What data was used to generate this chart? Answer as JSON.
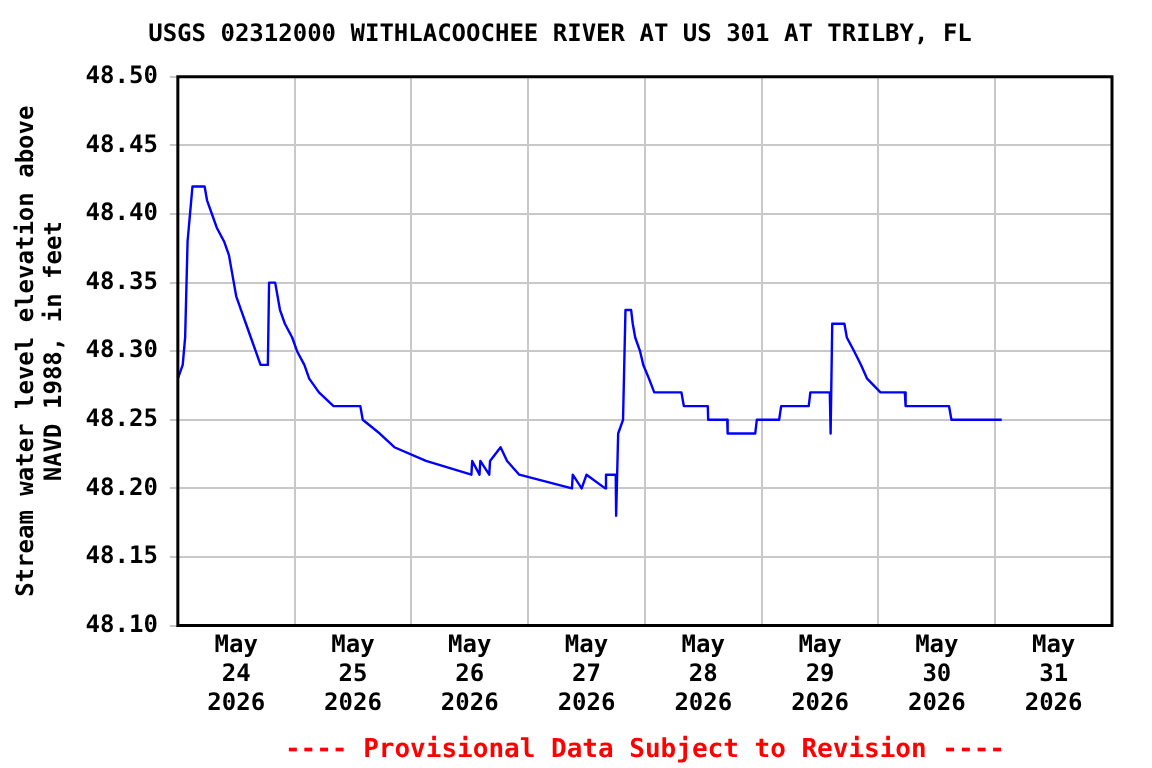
{
  "chart_data": {
    "type": "line",
    "title": "USGS 02312000 WITHLACOOCHEE RIVER AT US 301 AT TRILBY, FL",
    "ylabel": "Stream water level elevation above NAVD 1988, in feet",
    "annotations": [
      "---- Provisional Data Subject to Revision ----"
    ],
    "xlim": [
      "2026-05-24T00:00",
      "2026-06-01T00:00"
    ],
    "xticks": [
      {
        "value": "2026-05-24T12:00",
        "label": "May\n24\n2026"
      },
      {
        "value": "2026-05-25T00:00",
        "label": null
      },
      {
        "value": "2026-05-25T12:00",
        "label": "May\n25\n2026"
      },
      {
        "value": "2026-05-26T00:00",
        "label": null
      },
      {
        "value": "2026-05-26T12:00",
        "label": "May\n26\n2026"
      },
      {
        "value": "2026-05-27T00:00",
        "label": null
      },
      {
        "value": "2026-05-27T12:00",
        "label": "May\n27\n2026"
      },
      {
        "value": "2026-05-28T00:00",
        "label": null
      },
      {
        "value": "2026-05-28T12:00",
        "label": "May\n28\n2026"
      },
      {
        "value": "2026-05-29T00:00",
        "label": null
      },
      {
        "value": "2026-05-29T12:00",
        "label": "May\n29\n2026"
      },
      {
        "value": "2026-05-30T00:00",
        "label": null
      },
      {
        "value": "2026-05-30T12:00",
        "label": "May\n30\n2026"
      },
      {
        "value": "2026-05-31T00:00",
        "label": null
      },
      {
        "value": "2026-05-31T12:00",
        "label": "May\n31\n2026"
      }
    ],
    "ylim": [
      48.1,
      48.5
    ],
    "yticks": [
      {
        "value": 48.1,
        "label": "48.10"
      },
      {
        "value": 48.15,
        "label": "48.15"
      },
      {
        "value": 48.2,
        "label": "48.20"
      },
      {
        "value": 48.25,
        "label": "48.25"
      },
      {
        "value": 48.3,
        "label": "48.30"
      },
      {
        "value": 48.35,
        "label": "48.35"
      },
      {
        "value": 48.4,
        "label": "48.40"
      },
      {
        "value": 48.45,
        "label": "48.45"
      },
      {
        "value": 48.5,
        "label": "48.50"
      }
    ],
    "grid": true,
    "legend": false,
    "marker": "none",
    "line_style": "solid",
    "x": [
      "2026-05-24T00:00",
      "2026-05-24T01:00",
      "2026-05-24T01:30",
      "2026-05-24T02:00",
      "2026-05-24T03:00",
      "2026-05-24T05:30",
      "2026-05-24T06:00",
      "2026-05-24T07:00",
      "2026-05-24T08:00",
      "2026-05-24T09:30",
      "2026-05-24T10:30",
      "2026-05-24T11:00",
      "2026-05-24T12:00",
      "2026-05-24T13:00",
      "2026-05-24T14:00",
      "2026-05-24T15:00",
      "2026-05-24T16:00",
      "2026-05-24T17:00",
      "2026-05-24T18:30",
      "2026-05-24T18:45",
      "2026-05-24T20:00",
      "2026-05-24T21:00",
      "2026-05-24T22:00",
      "2026-05-24T23:30",
      "2026-05-25T00:30",
      "2026-05-25T02:00",
      "2026-05-25T03:00",
      "2026-05-25T05:00",
      "2026-05-25T08:00",
      "2026-05-25T13:30",
      "2026-05-25T14:00",
      "2026-05-25T17:30",
      "2026-05-25T20:30",
      "2026-05-26T03:00",
      "2026-05-26T12:20",
      "2026-05-26T12:30",
      "2026-05-26T14:00",
      "2026-05-26T14:10",
      "2026-05-26T16:00",
      "2026-05-26T16:10",
      "2026-05-26T18:20",
      "2026-05-26T19:40",
      "2026-05-26T22:10",
      "2026-05-27T09:00",
      "2026-05-27T09:10",
      "2026-05-27T11:00",
      "2026-05-27T12:00",
      "2026-05-27T15:50",
      "2026-05-27T16:00",
      "2026-05-27T18:00",
      "2026-05-27T18:05",
      "2026-05-27T18:30",
      "2026-05-27T19:30",
      "2026-05-27T20:00",
      "2026-05-27T21:10",
      "2026-05-27T21:30",
      "2026-05-27T22:00",
      "2026-05-27T23:00",
      "2026-05-27T23:40",
      "2026-05-28T00:50",
      "2026-05-28T01:55",
      "2026-05-28T07:30",
      "2026-05-28T08:00",
      "2026-05-28T12:55",
      "2026-05-28T13:00",
      "2026-05-28T16:55",
      "2026-05-28T17:00",
      "2026-05-28T22:40",
      "2026-05-28T23:00",
      "2026-05-29T03:35",
      "2026-05-29T04:00",
      "2026-05-29T09:40",
      "2026-05-29T10:00",
      "2026-05-29T14:00",
      "2026-05-29T14:10",
      "2026-05-29T14:30",
      "2026-05-29T17:00",
      "2026-05-29T17:30",
      "2026-05-29T19:00",
      "2026-05-29T20:25",
      "2026-05-29T21:40",
      "2026-05-30T00:25",
      "2026-05-30T05:25",
      "2026-05-30T05:35",
      "2026-05-30T14:30",
      "2026-05-30T15:00",
      "2026-05-31T01:20"
    ],
    "series": [
      {
        "color": "#0000ff",
        "values": [
          48.28,
          48.29,
          48.31,
          48.38,
          48.42,
          48.42,
          48.41,
          48.4,
          48.39,
          48.38,
          48.37,
          48.36,
          48.34,
          48.33,
          48.32,
          48.31,
          48.3,
          48.29,
          48.29,
          48.35,
          48.35,
          48.33,
          48.32,
          48.31,
          48.3,
          48.29,
          48.28,
          48.27,
          48.26,
          48.26,
          48.25,
          48.24,
          48.23,
          48.22,
          48.21,
          48.22,
          48.21,
          48.22,
          48.21,
          48.22,
          48.23,
          48.22,
          48.21,
          48.2,
          48.21,
          48.2,
          48.21,
          48.2,
          48.21,
          48.21,
          48.18,
          48.24,
          48.25,
          48.33,
          48.33,
          48.32,
          48.31,
          48.3,
          48.29,
          48.28,
          48.27,
          48.27,
          48.26,
          48.26,
          48.25,
          48.25,
          48.24,
          48.24,
          48.25,
          48.25,
          48.26,
          48.26,
          48.27,
          48.27,
          48.24,
          48.32,
          48.32,
          48.31,
          48.3,
          48.29,
          48.28,
          48.27,
          48.27,
          48.26,
          48.26,
          48.25,
          48.25
        ]
      }
    ]
  }
}
